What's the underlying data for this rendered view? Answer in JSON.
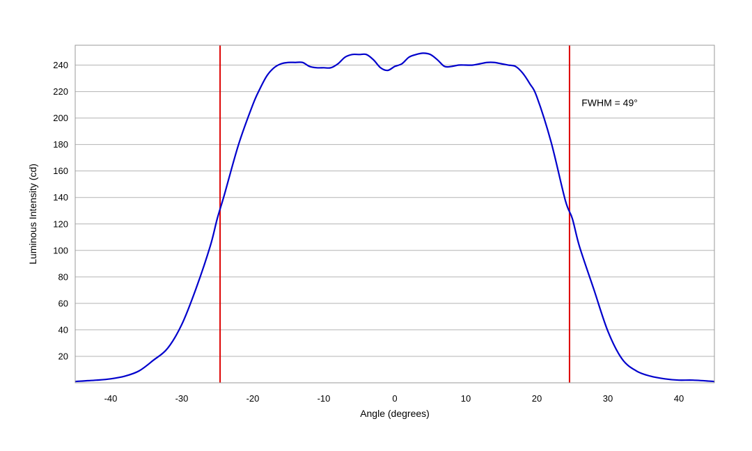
{
  "chart_data": {
    "type": "line",
    "title": "",
    "xlabel": "Angle (degrees)",
    "ylabel": "Luminous Intensity (cd)",
    "xlim": [
      -45,
      45
    ],
    "ylim": [
      0,
      255
    ],
    "xticks": [
      -40,
      -30,
      -20,
      -10,
      0,
      10,
      20,
      30,
      40
    ],
    "yticks": [
      20,
      40,
      60,
      80,
      100,
      120,
      140,
      160,
      180,
      200,
      220,
      240
    ],
    "grid": "horizontal",
    "series": [
      {
        "color": "#0000cc",
        "x": [
          -45,
          -42,
          -40,
          -38,
          -36,
          -34,
          -32,
          -30,
          -28,
          -26,
          -25,
          -24,
          -22,
          -20,
          -19,
          -18,
          -17,
          -16,
          -15,
          -14,
          -13,
          -12,
          -11,
          -10,
          -9,
          -8,
          -7,
          -6,
          -5,
          -4,
          -3,
          -2,
          -1,
          0,
          1,
          2,
          3,
          4,
          5,
          6,
          7,
          8,
          9,
          10,
          11,
          12,
          13,
          14,
          15,
          16,
          17,
          18,
          19,
          20,
          22,
          24,
          25,
          26,
          28,
          30,
          32,
          34,
          36,
          38,
          40,
          42,
          45
        ],
        "y": [
          1,
          2,
          3,
          5,
          9,
          17,
          26,
          44,
          71,
          103,
          124,
          142,
          180,
          210,
          222,
          232,
          238,
          241,
          242,
          242,
          242,
          239,
          238,
          238,
          238,
          241,
          246,
          248,
          248,
          248,
          244,
          238,
          236,
          239,
          241,
          246,
          248,
          249,
          248,
          244,
          239,
          239,
          240,
          240,
          240,
          241,
          242,
          242,
          241,
          240,
          239,
          234,
          226,
          216,
          182,
          138,
          124,
          103,
          71,
          39,
          18,
          9,
          5,
          3,
          2,
          2,
          1
        ]
      }
    ],
    "vlines": [
      {
        "x": -24.6,
        "color": "#dd0000"
      },
      {
        "x": 24.6,
        "color": "#dd0000"
      }
    ],
    "annotations": [
      {
        "text": "FWHM = 49°",
        "x": 26,
        "y": 209
      }
    ]
  }
}
